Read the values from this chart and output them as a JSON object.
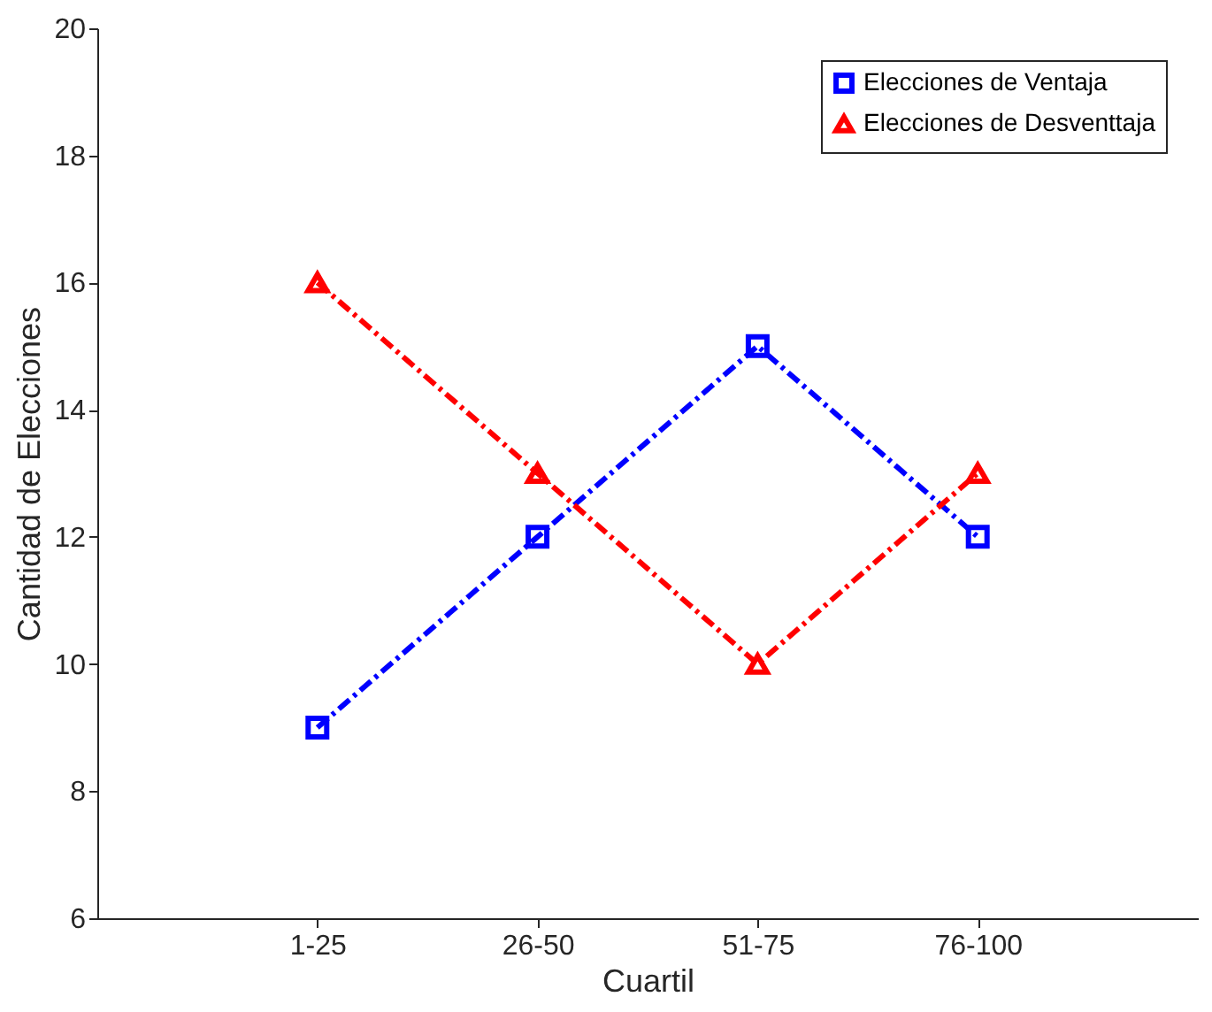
{
  "chart_data": {
    "type": "line",
    "xlabel": "Cuartil",
    "ylabel": "Cantidad de Elecciones",
    "categories": [
      "1-25",
      "26-50",
      "51-75",
      "76-100"
    ],
    "series": [
      {
        "name": "Elecciones de Ventaja",
        "color": "#0000ff",
        "values": [
          9,
          12,
          15,
          12
        ],
        "marker": "square"
      },
      {
        "name": "Elecciones de Desventtaja",
        "color": "#ff0000",
        "values": [
          16,
          13,
          10,
          13
        ],
        "marker": "triangle"
      }
    ],
    "ylim": [
      6,
      20
    ],
    "yticks": [
      6,
      8,
      10,
      12,
      14,
      16,
      18,
      20
    ],
    "grid": false,
    "legend": "top right",
    "line_style": "dashed"
  }
}
